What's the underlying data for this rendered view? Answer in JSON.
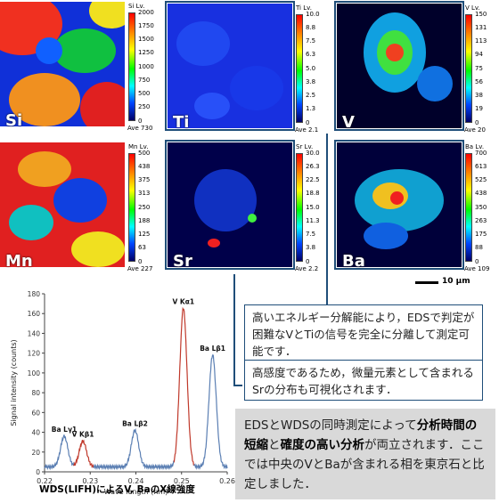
{
  "maps": {
    "si": {
      "element": "Si",
      "colorbar_title": "Si Lv.",
      "ticks": [
        "2000",
        "1750",
        "1500",
        "1250",
        "1000",
        "750",
        "500",
        "250",
        "0"
      ],
      "ave": "Ave 730"
    },
    "ti": {
      "element": "Ti",
      "colorbar_title": "Ti Lv.",
      "ticks": [
        "10.0",
        "8.8",
        "7.5",
        "6.3",
        "5.0",
        "3.8",
        "2.5",
        "1.3",
        "0"
      ],
      "ave": "Ave 2.1"
    },
    "v": {
      "element": "V",
      "colorbar_title": "V Lv.",
      "ticks": [
        "150",
        "131",
        "113",
        "94",
        "75",
        "56",
        "38",
        "19",
        "0"
      ],
      "ave": "Ave 20"
    },
    "mn": {
      "element": "Mn",
      "colorbar_title": "Mn Lv.",
      "ticks": [
        "500",
        "438",
        "375",
        "313",
        "250",
        "188",
        "125",
        "63",
        "0"
      ],
      "ave": "Ave 227"
    },
    "sr": {
      "element": "Sr",
      "colorbar_title": "Sr Lv.",
      "ticks": [
        "30.0",
        "26.3",
        "22.5",
        "18.8",
        "15.0",
        "11.3",
        "7.5",
        "3.8",
        "0"
      ],
      "ave": "Ave 2.2"
    },
    "ba": {
      "element": "Ba",
      "colorbar_title": "Ba Lv.",
      "ticks": [
        "700",
        "613",
        "525",
        "438",
        "350",
        "263",
        "175",
        "88",
        "0"
      ],
      "ave": "Ave 109"
    }
  },
  "scale_bar": "10 µm",
  "notes": {
    "resolution": "高いエネルギー分解能により，EDSで判定が困難なVとTiの信号を完全に分離して測定可能です．",
    "sensitivity": "高感度であるため，微量元素として含まれるSrの分布も可視化されます．",
    "summary_pre": "EDSとWDSの同時測定によって",
    "summary_b1": "分析時間の短縮",
    "summary_mid": "と",
    "summary_b2": "確度の高い分析",
    "summary_post": "が両立されます．ここでは中央のVとBaが含まれる相を東京石と比定しました．"
  },
  "chart_data": {
    "type": "line",
    "title": "",
    "caption": "WDS(LIFH)によるV, BaのX線強度",
    "xlabel": "Wave length (nm)",
    "ylabel": "Signal intensity (counts)",
    "xlim": [
      0.22,
      0.26
    ],
    "ylim": [
      0,
      180
    ],
    "xticks": [
      "0.22",
      "0.23",
      "0.24",
      "0.25",
      "0.26"
    ],
    "yticks": [
      "0",
      "20",
      "40",
      "60",
      "80",
      "100",
      "120",
      "140",
      "160",
      "180"
    ],
    "baseline": 5,
    "peaks": [
      {
        "label": "Ba Lγ1",
        "x": 0.2243,
        "height": 31,
        "color": "#5b7fb3"
      },
      {
        "label": "V Kβ1",
        "x": 0.2284,
        "height": 26,
        "color": "#c0392b"
      },
      {
        "label": "Ba Lβ2",
        "x": 0.2398,
        "height": 37,
        "color": "#5b7fb3"
      },
      {
        "label": "V Kα1",
        "x": 0.2504,
        "height": 160,
        "color": "#c0392b"
      },
      {
        "label": "Ba Lβ1",
        "x": 0.2568,
        "height": 113,
        "color": "#5b7fb3"
      }
    ],
    "colors": {
      "ba": "#5b7fb3",
      "v": "#c0392b"
    }
  }
}
